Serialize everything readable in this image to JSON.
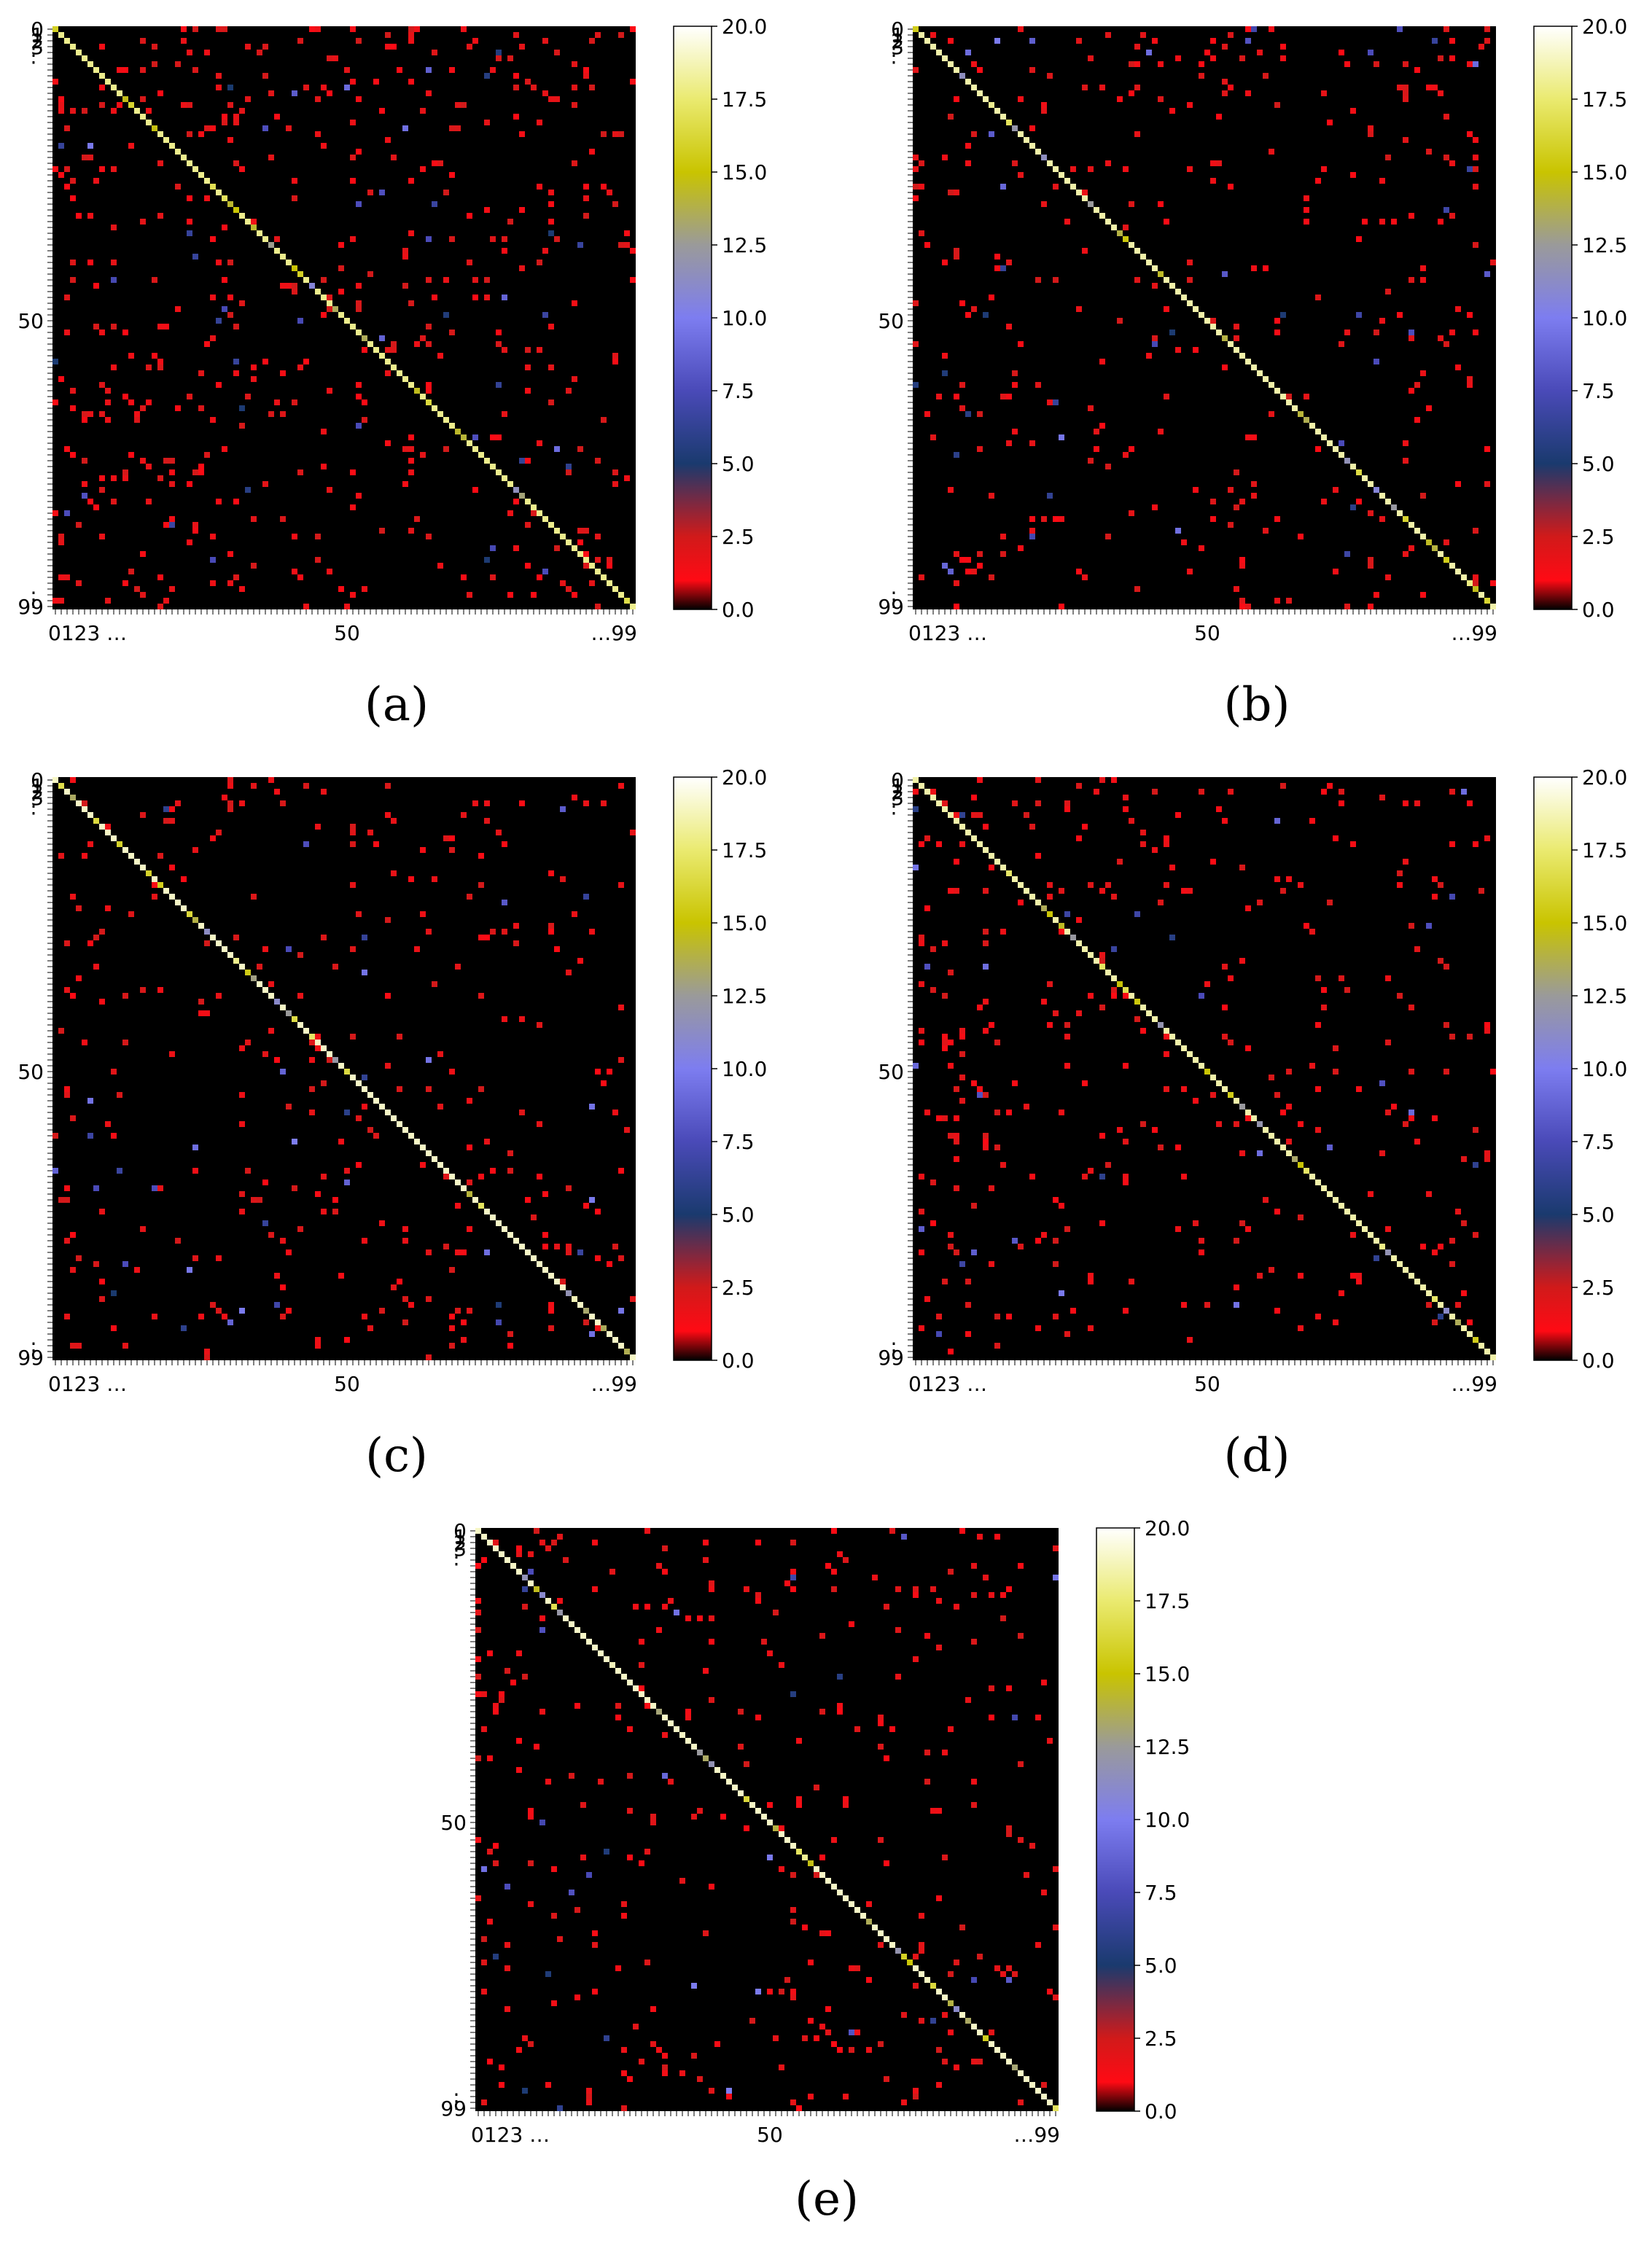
{
  "figure": {
    "panels": [
      {
        "caption": "(a)"
      },
      {
        "caption": "(b)"
      },
      {
        "caption": "(c)"
      },
      {
        "caption": "(d)"
      },
      {
        "caption": "(e)"
      }
    ]
  },
  "chart_data": [
    {
      "type": "heatmap",
      "caption": "(a)",
      "size": 100,
      "colorscale": {
        "vmin": 0,
        "vmax": 20,
        "ticks": [
          "0.0",
          "2.5",
          "5.0",
          "7.5",
          "10.0",
          "12.5",
          "15.0",
          "17.5",
          "20.0"
        ],
        "stops": [
          [
            0,
            "#000000"
          ],
          [
            0.05,
            "#ff0a14"
          ],
          [
            0.125,
            "#d11a1a"
          ],
          [
            0.25,
            "#1a3a6e"
          ],
          [
            0.375,
            "#4a4ab8"
          ],
          [
            0.5,
            "#7d7df0"
          ],
          [
            0.625,
            "#9a9a9a"
          ],
          [
            0.75,
            "#c9c400"
          ],
          [
            0.875,
            "#eaea70"
          ],
          [
            1,
            "#ffffff"
          ]
        ]
      },
      "x_tick_labels": [
        "0123 …",
        "50",
        "…99"
      ],
      "y_tick_labels": [
        "0",
        "1",
        "2",
        "3",
        "⋮",
        "50",
        "⋮",
        "99"
      ],
      "diagonal_value": 18,
      "seed": 11,
      "offdiag_density": 0.045
    },
    {
      "type": "heatmap",
      "caption": "(b)",
      "size": 100,
      "colorscale": {
        "vmin": 0,
        "vmax": 20,
        "ticks": [
          "0.0",
          "2.5",
          "5.0",
          "7.5",
          "10.0",
          "12.5",
          "15.0",
          "17.5",
          "20.0"
        ],
        "stops": [
          [
            0,
            "#000000"
          ],
          [
            0.05,
            "#ff0a14"
          ],
          [
            0.125,
            "#d11a1a"
          ],
          [
            0.25,
            "#1a3a6e"
          ],
          [
            0.375,
            "#4a4ab8"
          ],
          [
            0.5,
            "#7d7df0"
          ],
          [
            0.625,
            "#9a9a9a"
          ],
          [
            0.75,
            "#c9c400"
          ],
          [
            0.875,
            "#eaea70"
          ],
          [
            1,
            "#ffffff"
          ]
        ]
      },
      "x_tick_labels": [
        "0123 …",
        "50",
        "…99"
      ],
      "y_tick_labels": [
        "0",
        "1",
        "2",
        "3",
        "⋮",
        "50",
        "⋮",
        "99"
      ],
      "diagonal_value": 18.5,
      "seed": 23,
      "offdiag_density": 0.028
    },
    {
      "type": "heatmap",
      "caption": "(c)",
      "size": 100,
      "colorscale": {
        "vmin": 0,
        "vmax": 20,
        "ticks": [
          "0.0",
          "2.5",
          "5.0",
          "7.5",
          "10.0",
          "12.5",
          "15.0",
          "17.5",
          "20.0"
        ],
        "stops": [
          [
            0,
            "#000000"
          ],
          [
            0.05,
            "#ff0a14"
          ],
          [
            0.125,
            "#d11a1a"
          ],
          [
            0.25,
            "#1a3a6e"
          ],
          [
            0.375,
            "#4a4ab8"
          ],
          [
            0.5,
            "#7d7df0"
          ],
          [
            0.625,
            "#9a9a9a"
          ],
          [
            0.75,
            "#c9c400"
          ],
          [
            0.875,
            "#eaea70"
          ],
          [
            1,
            "#ffffff"
          ]
        ]
      },
      "x_tick_labels": [
        "0123 …",
        "50",
        "…99"
      ],
      "y_tick_labels": [
        "0",
        "1",
        "2",
        "3",
        "⋮",
        "50",
        "⋮",
        "99"
      ],
      "diagonal_value": 19,
      "seed": 37,
      "offdiag_density": 0.027
    },
    {
      "type": "heatmap",
      "caption": "(d)",
      "size": 100,
      "colorscale": {
        "vmin": 0,
        "vmax": 20,
        "ticks": [
          "0.0",
          "2.5",
          "5.0",
          "7.5",
          "10.0",
          "12.5",
          "15.0",
          "17.5",
          "20.0"
        ],
        "stops": [
          [
            0,
            "#000000"
          ],
          [
            0.05,
            "#ff0a14"
          ],
          [
            0.125,
            "#d11a1a"
          ],
          [
            0.25,
            "#1a3a6e"
          ],
          [
            0.375,
            "#4a4ab8"
          ],
          [
            0.5,
            "#7d7df0"
          ],
          [
            0.625,
            "#9a9a9a"
          ],
          [
            0.75,
            "#c9c400"
          ],
          [
            0.875,
            "#eaea70"
          ],
          [
            1,
            "#ffffff"
          ]
        ]
      },
      "x_tick_labels": [
        "0123 …",
        "50",
        "…99"
      ],
      "y_tick_labels": [
        "0",
        "1",
        "2",
        "3",
        "⋮",
        "50",
        "⋮",
        "99"
      ],
      "diagonal_value": 18.5,
      "seed": 53,
      "offdiag_density": 0.032
    },
    {
      "type": "heatmap",
      "caption": "(e)",
      "size": 100,
      "colorscale": {
        "vmin": 0,
        "vmax": 20,
        "ticks": [
          "0.0",
          "2.5",
          "5.0",
          "7.5",
          "10.0",
          "12.5",
          "15.0",
          "17.5",
          "20.0"
        ],
        "stops": [
          [
            0,
            "#000000"
          ],
          [
            0.05,
            "#ff0a14"
          ],
          [
            0.125,
            "#d11a1a"
          ],
          [
            0.25,
            "#1a3a6e"
          ],
          [
            0.375,
            "#4a4ab8"
          ],
          [
            0.5,
            "#7d7df0"
          ],
          [
            0.625,
            "#9a9a9a"
          ],
          [
            0.75,
            "#c9c400"
          ],
          [
            0.875,
            "#eaea70"
          ],
          [
            1,
            "#ffffff"
          ]
        ]
      },
      "x_tick_labels": [
        "0123 …",
        "50",
        "…99"
      ],
      "y_tick_labels": [
        "0",
        "1",
        "2",
        "3",
        "⋮",
        "50",
        "⋮",
        "99"
      ],
      "diagonal_value": 19,
      "seed": 71,
      "offdiag_density": 0.03
    }
  ]
}
